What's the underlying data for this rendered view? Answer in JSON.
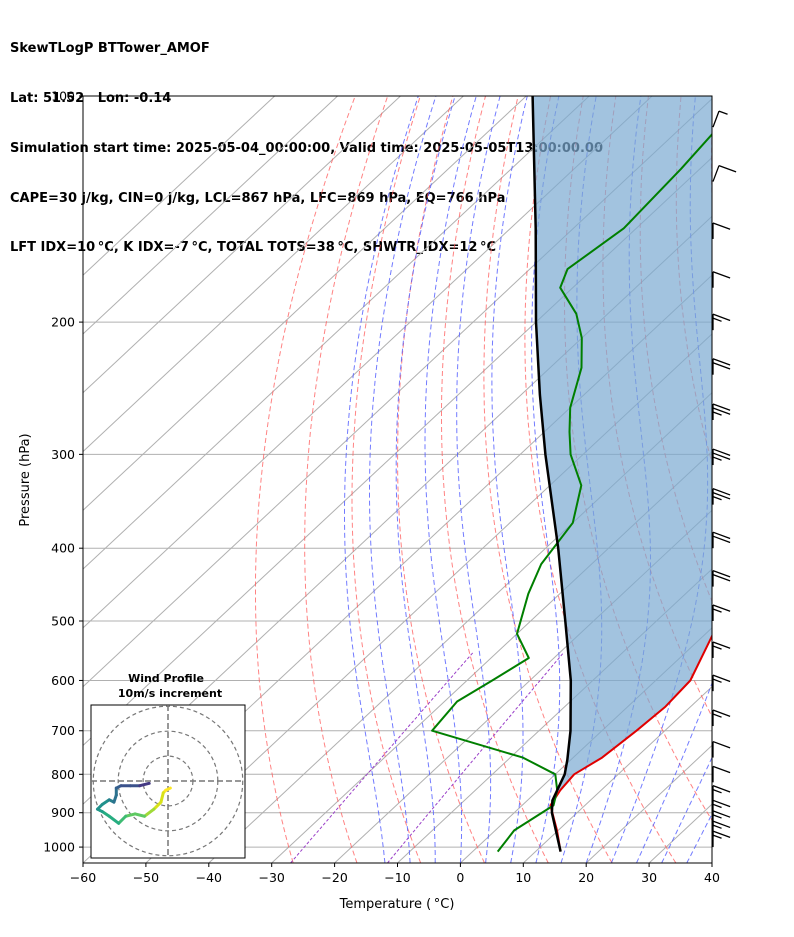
{
  "header": {
    "line1": "SkewTLogP BTTower_AMOF",
    "line2": "Lat: 51.52   Lon: -0.14",
    "line3": "Simulation start time: 2025-05-04_00:00:00, Valid time: 2025-05-05T13:00:00.00",
    "line4": "CAPE=30 j/kg, CIN=0 j/kg, LCL=867 hPa, LFC=869 hPa, EQ=766 hPa",
    "line5": "LFT IDX=10 °C, K IDX=-7 °C, TOTAL TOTS=38 °C, SHWTR_IDX=12 °C"
  },
  "hodograph": {
    "title": "Wind Profile",
    "subtitle": "10m/s increment"
  },
  "colors": {
    "temperature": "#e00000",
    "dewpoint": "#007f00",
    "parcel": "#000000",
    "cape_fill": "#7aaad2",
    "dry_adiabat": "#ff5a5a",
    "moist_adiabat": "#4f5aff",
    "mixing_ratio": "#9a3fc8",
    "isotherm": "#b0b0b0"
  },
  "chart_data": {
    "type": "line",
    "title": "SkewTLogP BTTower_AMOF",
    "xlabel": "Temperature ( °C)",
    "ylabel": "Pressure (hPa)",
    "x_ticks": [
      -60,
      -50,
      -40,
      -30,
      -20,
      -10,
      0,
      10,
      20,
      30,
      40
    ],
    "x_tick_labels": [
      "−60",
      "−50",
      "−40",
      "−30",
      "−20",
      "−10",
      "0",
      "10",
      "20",
      "30",
      "40"
    ],
    "y_ticks": [
      1000,
      900,
      800,
      700,
      600,
      500,
      400,
      300,
      200,
      100
    ],
    "y_tick_labels": [
      "1000",
      "900",
      "800",
      "700",
      "600",
      "500",
      "400",
      "300",
      "200",
      "100"
    ],
    "xlim": [
      -60,
      40
    ],
    "ylim": [
      1050,
      100
    ],
    "y_scale": "log",
    "grid": true,
    "series": [
      {
        "name": "Temperature",
        "pressure": [
          1014,
          950,
          880,
          840,
          800,
          760,
          700,
          650,
          600,
          500,
          420,
          350,
          310,
          290,
          270,
          250,
          235,
          220,
          200,
          180,
          160,
          150,
          140,
          130,
          120,
          110,
          100
        ],
        "temperature": [
          14.0,
          9.8,
          4.5,
          3.5,
          3.0,
          4.6,
          5.5,
          6.0,
          5.5,
          0.0,
          -3.0,
          -7.0,
          -9.0,
          -9.5,
          -9.0,
          -8.0,
          -6.5,
          -5.0,
          -5.0,
          -3.5,
          -1.5,
          0.5,
          2.0,
          3.0,
          3.5,
          3.8,
          4.0
        ]
      },
      {
        "name": "Dewpoint",
        "pressure": [
          1014,
          950,
          880,
          840,
          800,
          760,
          700,
          640,
          600,
          560,
          520,
          460,
          420,
          370,
          330,
          300,
          280,
          260,
          230,
          210,
          195,
          180,
          170,
          150,
          125,
          100
        ],
        "temperature": [
          4.0,
          3.0,
          5.0,
          3.0,
          0.0,
          -8.0,
          -27.0,
          -28.0,
          -26.0,
          -24.0,
          -30.0,
          -35.0,
          -38.0,
          -40.0,
          -45.0,
          -52.0,
          -56.0,
          -60.0,
          -65.0,
          -70.0,
          -75.0,
          -82.0,
          -84.0,
          -82.0,
          -83.0,
          -85.0
        ]
      },
      {
        "name": "Parcel",
        "pressure": [
          1014,
          900,
          867,
          800,
          766,
          700,
          600,
          500,
          400,
          300,
          250,
          200,
          150,
          100
        ],
        "temperature": [
          14.0,
          6.0,
          4.0,
          1.5,
          -0.5,
          -5.0,
          -13.5,
          -24.5,
          -38.0,
          -56.0,
          -67.0,
          -80.0,
          -96.0,
          -119.0
        ]
      }
    ],
    "wind_barbs": [
      {
        "p": 1000,
        "speed_kt": 15,
        "dir": 270
      },
      {
        "p": 970,
        "speed_kt": 15,
        "dir": 270
      },
      {
        "p": 940,
        "speed_kt": 15,
        "dir": 270
      },
      {
        "p": 910,
        "speed_kt": 15,
        "dir": 270
      },
      {
        "p": 870,
        "speed_kt": 15,
        "dir": 275
      },
      {
        "p": 820,
        "speed_kt": 10,
        "dir": 280
      },
      {
        "p": 760,
        "speed_kt": 10,
        "dir": 290
      },
      {
        "p": 690,
        "speed_kt": 15,
        "dir": 300
      },
      {
        "p": 620,
        "speed_kt": 15,
        "dir": 300
      },
      {
        "p": 560,
        "speed_kt": 15,
        "dir": 300
      },
      {
        "p": 500,
        "speed_kt": 15,
        "dir": 300
      },
      {
        "p": 450,
        "speed_kt": 20,
        "dir": 300
      },
      {
        "p": 400,
        "speed_kt": 20,
        "dir": 295
      },
      {
        "p": 350,
        "speed_kt": 25,
        "dir": 295
      },
      {
        "p": 310,
        "speed_kt": 25,
        "dir": 290
      },
      {
        "p": 270,
        "speed_kt": 25,
        "dir": 290
      },
      {
        "p": 235,
        "speed_kt": 20,
        "dir": 285
      },
      {
        "p": 205,
        "speed_kt": 15,
        "dir": 290
      },
      {
        "p": 180,
        "speed_kt": 10,
        "dir": 290
      },
      {
        "p": 155,
        "speed_kt": 10,
        "dir": 260
      },
      {
        "p": 130,
        "speed_kt": 10,
        "dir": 230
      },
      {
        "p": 110,
        "speed_kt": 5,
        "dir": 200
      }
    ],
    "hodograph_points": [
      {
        "u": 0.5,
        "v": -1.5
      },
      {
        "u": -0.5,
        "v": -2.0
      },
      {
        "u": -1.0,
        "v": -2.5
      },
      {
        "u": -1.5,
        "v": -4.5
      },
      {
        "u": -3.0,
        "v": -6.0
      },
      {
        "u": -5.0,
        "v": -7.5
      },
      {
        "u": -7.0,
        "v": -7.0
      },
      {
        "u": -9.0,
        "v": -7.5
      },
      {
        "u": -10.5,
        "v": -9.0
      },
      {
        "u": -12.5,
        "v": -7.5
      },
      {
        "u": -14.0,
        "v": -6.5
      },
      {
        "u": -15.0,
        "v": -6.0
      },
      {
        "u": -14.0,
        "v": -5.0
      },
      {
        "u": -12.5,
        "v": -4.0
      },
      {
        "u": -11.5,
        "v": -4.5
      },
      {
        "u": -11.0,
        "v": -3.0
      },
      {
        "u": -11.0,
        "v": -1.5
      },
      {
        "u": -10.0,
        "v": -1.0
      },
      {
        "u": -8.0,
        "v": -1.0
      },
      {
        "u": -6.0,
        "v": -1.0
      },
      {
        "u": -4.0,
        "v": -0.5
      }
    ]
  }
}
